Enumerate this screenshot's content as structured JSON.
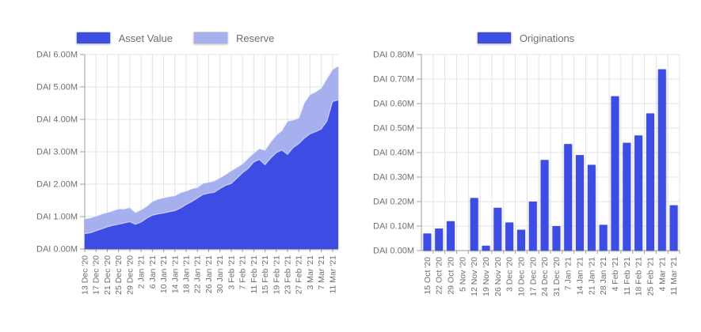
{
  "currency": "DAI",
  "value_unit": "millions of DAI",
  "chart_data": [
    {
      "type": "area",
      "stacked": true,
      "title": "",
      "legend_position": "top",
      "grid": true,
      "ylim": [
        0,
        6
      ],
      "y_ticks": [
        "DAI 0.00M",
        "DAI 1.00M",
        "DAI 2.00M",
        "DAI 3.00M",
        "DAI 4.00M",
        "DAI 5.00M",
        "DAI 6.00M"
      ],
      "x": [
        "13 Dec '20",
        "15 Dec '20",
        "17 Dec '20",
        "19 Dec '20",
        "21 Dec '20",
        "23 Dec '20",
        "25 Dec '20",
        "27 Dec '20",
        "29 Dec '20",
        "31 Dec '20",
        "2 Jan '21",
        "4 Jan '21",
        "6 Jan '21",
        "8 Jan '21",
        "10 Jan '21",
        "12 Jan '21",
        "14 Jan '21",
        "16 Jan '21",
        "18 Jan '21",
        "20 Jan '21",
        "22 Jan '21",
        "24 Jan '21",
        "26 Jan '21",
        "28 Jan '21",
        "30 Jan '21",
        "1 Feb '21",
        "3 Feb '21",
        "5 Feb '21",
        "7 Feb '21",
        "9 Feb '21",
        "11 Feb '21",
        "13 Feb '21",
        "15 Feb '21",
        "17 Feb '21",
        "19 Feb '21",
        "21 Feb '21",
        "23 Feb '21",
        "25 Feb '21",
        "27 Feb '21",
        "1 Mar '21",
        "3 Mar '21",
        "5 Mar '21",
        "7 Mar '21",
        "9 Mar '21",
        "11 Mar '21",
        "13 Mar '21"
      ],
      "x_ticks": [
        "13 Dec '20",
        "17 Dec '20",
        "21 Dec '20",
        "25 Dec '20",
        "29 Dec '20",
        "2 Jan '21",
        "6 Jan '21",
        "10 Jan '21",
        "14 Jan '21",
        "18 Jan '21",
        "22 Jan '21",
        "26 Jan '21",
        "30 Jan '21",
        "3 Feb '21",
        "7 Feb '21",
        "11 Feb '21",
        "15 Feb '21",
        "19 Feb '21",
        "23 Feb '21",
        "27 Feb '21",
        "3 Mar '21",
        "7 Mar '21",
        "11 Mar '21"
      ],
      "x_tick_every": 2,
      "series": [
        {
          "name": "Asset Value",
          "color": "#3E4EE4",
          "values": [
            0.47,
            0.5,
            0.56,
            0.62,
            0.68,
            0.73,
            0.76,
            0.8,
            0.84,
            0.76,
            0.83,
            0.95,
            1.04,
            1.08,
            1.11,
            1.15,
            1.18,
            1.26,
            1.37,
            1.46,
            1.57,
            1.68,
            1.72,
            1.75,
            1.86,
            1.96,
            2.02,
            2.18,
            2.35,
            2.48,
            2.68,
            2.76,
            2.6,
            2.8,
            2.97,
            3.05,
            2.92,
            3.13,
            3.25,
            3.42,
            3.55,
            3.62,
            3.7,
            3.95,
            4.55,
            4.6
          ]
        },
        {
          "name": "Reserve",
          "color": "#A7B0EF",
          "values": [
            0.46,
            0.46,
            0.46,
            0.46,
            0.45,
            0.45,
            0.48,
            0.44,
            0.44,
            0.37,
            0.38,
            0.37,
            0.43,
            0.46,
            0.47,
            0.47,
            0.47,
            0.48,
            0.42,
            0.4,
            0.33,
            0.35,
            0.34,
            0.35,
            0.34,
            0.34,
            0.4,
            0.34,
            0.28,
            0.32,
            0.28,
            0.34,
            0.45,
            0.5,
            0.55,
            0.6,
            1.03,
            0.85,
            0.8,
            1.1,
            1.22,
            1.23,
            1.27,
            1.31,
            0.99,
            1.05
          ]
        }
      ]
    },
    {
      "type": "bar",
      "title": "",
      "legend_position": "top",
      "grid": true,
      "ylim": [
        0,
        0.8
      ],
      "y_ticks": [
        "DAI 0.00M",
        "DAI 0.10M",
        "DAI 0.20M",
        "DAI 0.30M",
        "DAI 0.40M",
        "DAI 0.50M",
        "DAI 0.60M",
        "DAI 0.70M",
        "DAI 0.80M"
      ],
      "categories": [
        "15 Oct '20",
        "22 Oct '20",
        "29 Oct '20",
        "5 Nov '20",
        "12 Nov '20",
        "19 Nov '20",
        "26 Nov '20",
        "3 Dec '20",
        "10 Dec '20",
        "17 Dec '20",
        "24 Dec '20",
        "31 Dec '20",
        "7 Jan '21",
        "14 Jan '21",
        "21 Jan '21",
        "28 Jan '21",
        "4 Feb '21",
        "11 Feb '21",
        "18 Feb '21",
        "25 Feb '21",
        "4 Mar '21",
        "11 Mar '21"
      ],
      "series": [
        {
          "name": "Originations",
          "color": "#3E4EE4",
          "values": [
            0.07,
            0.09,
            0.12,
            0,
            0.215,
            0.02,
            0.175,
            0.115,
            0.085,
            0.2,
            0.37,
            0.1,
            0.435,
            0.39,
            0.35,
            0.105,
            0.63,
            0.44,
            0.47,
            0.56,
            0.74,
            0.185
          ]
        }
      ]
    }
  ],
  "style": {
    "grid_color": "#e3e3e3",
    "axis_color": "#9e9e9e",
    "text_color": "#6e6e6e"
  }
}
